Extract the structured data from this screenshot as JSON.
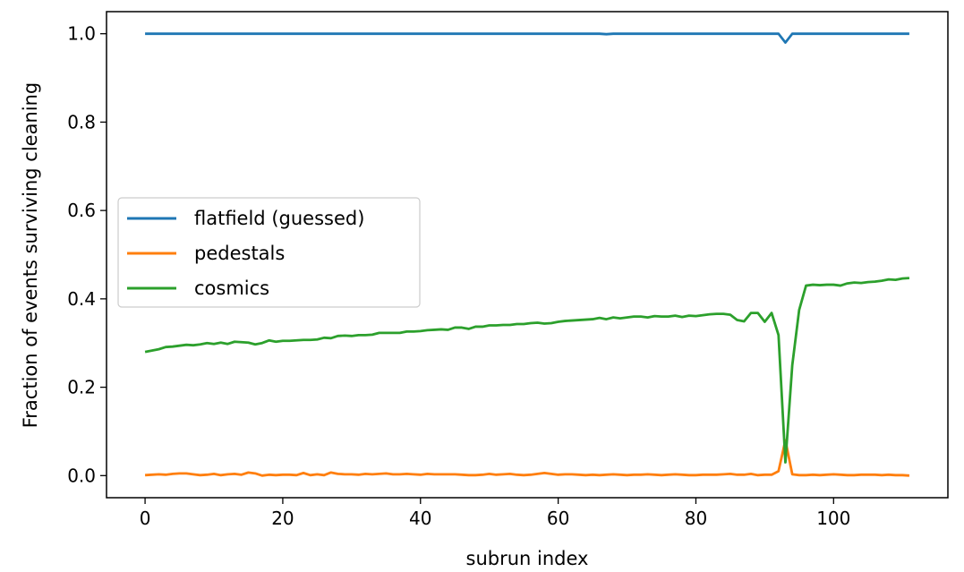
{
  "chart_data": {
    "type": "line",
    "title": "",
    "xlabel": "subrun index",
    "ylabel": "Fraction of events surviving cleaning",
    "xlim": [
      -5.6,
      116.6
    ],
    "ylim": [
      -0.05,
      1.05
    ],
    "xticks": [
      0,
      20,
      40,
      60,
      80,
      100
    ],
    "xtick_labels": [
      "0",
      "20",
      "40",
      "60",
      "80",
      "100"
    ],
    "yticks": [
      0.0,
      0.2,
      0.4,
      0.6,
      0.8,
      1.0
    ],
    "ytick_labels": [
      "0.0",
      "0.2",
      "0.4",
      "0.6",
      "0.8",
      "1.0"
    ],
    "grid": false,
    "legend_position": "center-left",
    "x": [
      0,
      1,
      2,
      3,
      4,
      5,
      6,
      7,
      8,
      9,
      10,
      11,
      12,
      13,
      14,
      15,
      16,
      17,
      18,
      19,
      20,
      21,
      22,
      23,
      24,
      25,
      26,
      27,
      28,
      29,
      30,
      31,
      32,
      33,
      34,
      35,
      36,
      37,
      38,
      39,
      40,
      41,
      42,
      43,
      44,
      45,
      46,
      47,
      48,
      49,
      50,
      51,
      52,
      53,
      54,
      55,
      56,
      57,
      58,
      59,
      60,
      61,
      62,
      63,
      64,
      65,
      66,
      67,
      68,
      69,
      70,
      71,
      72,
      73,
      74,
      75,
      76,
      77,
      78,
      79,
      80,
      81,
      82,
      83,
      84,
      85,
      86,
      87,
      88,
      89,
      90,
      91,
      92,
      93,
      94,
      95,
      96,
      97,
      98,
      99,
      100,
      101,
      102,
      103,
      104,
      105,
      106,
      107,
      108,
      109,
      110,
      111
    ],
    "series": [
      {
        "name": "flatfield (guessed)",
        "color": "#1f77b4",
        "values": [
          1,
          1,
          1,
          1,
          1,
          1,
          1,
          1,
          1,
          1,
          1,
          1,
          1,
          1,
          1,
          1,
          1,
          1,
          1,
          1,
          1,
          1,
          1,
          1,
          1,
          1,
          1,
          1,
          1,
          1,
          1,
          1,
          1,
          1,
          1,
          1,
          1,
          1,
          1,
          1,
          1,
          1,
          1,
          1,
          1,
          1,
          1,
          1,
          1,
          1,
          1,
          1,
          1,
          1,
          1,
          1,
          1,
          1,
          1,
          1,
          1,
          1,
          1,
          1,
          1,
          1,
          1,
          0.999,
          1,
          1,
          1,
          1,
          1,
          1,
          1,
          1,
          1,
          1,
          1,
          1,
          1,
          1,
          1,
          1,
          1,
          1,
          1,
          1,
          1,
          1,
          1,
          1,
          1,
          0.98,
          1,
          1,
          1,
          1,
          1,
          1,
          1,
          1,
          1,
          1,
          1,
          1,
          1,
          1,
          1,
          1,
          1,
          1
        ]
      },
      {
        "name": "pedestals",
        "color": "#ff7f0e",
        "values": [
          0.001,
          0.002,
          0.003,
          0.002,
          0.004,
          0.005,
          0.005,
          0.003,
          0.001,
          0.002,
          0.004,
          0.001,
          0.003,
          0.004,
          0.002,
          0.007,
          0.005,
          0.0,
          0.002,
          0.001,
          0.002,
          0.002,
          0.001,
          0.006,
          0.001,
          0.003,
          0.001,
          0.007,
          0.004,
          0.003,
          0.003,
          0.002,
          0.004,
          0.003,
          0.004,
          0.005,
          0.003,
          0.003,
          0.004,
          0.003,
          0.002,
          0.004,
          0.003,
          0.003,
          0.003,
          0.003,
          0.002,
          0.001,
          0.001,
          0.002,
          0.004,
          0.002,
          0.003,
          0.004,
          0.002,
          0.001,
          0.002,
          0.004,
          0.006,
          0.004,
          0.002,
          0.003,
          0.003,
          0.002,
          0.001,
          0.002,
          0.001,
          0.002,
          0.003,
          0.002,
          0.001,
          0.002,
          0.002,
          0.003,
          0.002,
          0.001,
          0.002,
          0.003,
          0.002,
          0.001,
          0.001,
          0.002,
          0.002,
          0.002,
          0.003,
          0.004,
          0.002,
          0.002,
          0.004,
          0.001,
          0.002,
          0.002,
          0.01,
          0.08,
          0.003,
          0.001,
          0.001,
          0.002,
          0.001,
          0.002,
          0.003,
          0.002,
          0.001,
          0.001,
          0.002,
          0.002,
          0.002,
          0.001,
          0.002,
          0.001,
          0.001,
          0.0
        ]
      },
      {
        "name": "cosmics",
        "color": "#2ca02c",
        "values": [
          0.28,
          0.283,
          0.286,
          0.291,
          0.292,
          0.294,
          0.296,
          0.295,
          0.297,
          0.3,
          0.298,
          0.301,
          0.298,
          0.303,
          0.302,
          0.301,
          0.297,
          0.3,
          0.306,
          0.303,
          0.305,
          0.305,
          0.306,
          0.307,
          0.307,
          0.308,
          0.312,
          0.311,
          0.316,
          0.317,
          0.316,
          0.318,
          0.318,
          0.319,
          0.323,
          0.323,
          0.323,
          0.323,
          0.326,
          0.326,
          0.327,
          0.329,
          0.33,
          0.331,
          0.33,
          0.335,
          0.335,
          0.332,
          0.337,
          0.337,
          0.34,
          0.34,
          0.341,
          0.341,
          0.343,
          0.343,
          0.345,
          0.346,
          0.344,
          0.345,
          0.348,
          0.35,
          0.351,
          0.352,
          0.353,
          0.354,
          0.357,
          0.354,
          0.358,
          0.356,
          0.358,
          0.36,
          0.36,
          0.358,
          0.361,
          0.36,
          0.36,
          0.362,
          0.359,
          0.362,
          0.361,
          0.363,
          0.365,
          0.366,
          0.366,
          0.364,
          0.352,
          0.349,
          0.368,
          0.368,
          0.348,
          0.368,
          0.318,
          0.03,
          0.25,
          0.375,
          0.43,
          0.432,
          0.431,
          0.432,
          0.432,
          0.43,
          0.435,
          0.437,
          0.436,
          0.438,
          0.439,
          0.441,
          0.444,
          0.443,
          0.446,
          0.447
        ]
      }
    ]
  }
}
